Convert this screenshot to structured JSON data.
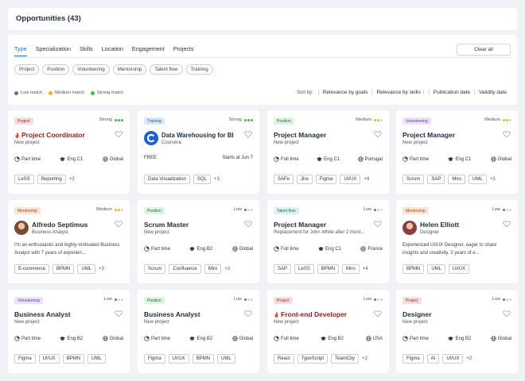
{
  "header": {
    "title": "Opportunities (43)"
  },
  "filters": {
    "tabs": [
      "Type",
      "Specialization",
      "Skills",
      "Location",
      "Engagement",
      "Projects"
    ],
    "active_tab": "Type",
    "clear_label": "Clear all",
    "chips": [
      "Project",
      "Position",
      "Volunteering",
      "Mentorship",
      "Talent flow",
      "Training"
    ],
    "legend": [
      {
        "label": "Low match",
        "color": "#6b7280"
      },
      {
        "label": "Medium match",
        "color": "#f0b429"
      },
      {
        "label": "Strong match",
        "color": "#3fb950"
      }
    ],
    "sort_label": "Sort by:",
    "sort_options": [
      "Relevance by goals",
      "Relevance by skills ↑",
      "Publication date",
      "Validity date"
    ]
  },
  "colors": {
    "project_tag_bg": "#f6dede",
    "project_tag_fg": "#9b2c2c",
    "training_tag_bg": "#dde9fb",
    "training_tag_fg": "#1e4e9c",
    "position_tag_bg": "#dff3e3",
    "position_tag_fg": "#226b35",
    "volunteering_tag_bg": "#ece3f8",
    "volunteering_tag_fg": "#5b3a99",
    "mentorship_tag_bg": "#fbe5d6",
    "mentorship_tag_fg": "#9c4a1a",
    "talent_tag_bg": "#dcf2f0",
    "talent_tag_fg": "#1e6b65"
  },
  "cards": [
    {
      "tag": "Project",
      "match": "Strong",
      "title": "Project Coordinator",
      "sub": "New project",
      "meta": [
        "Part time",
        "Eng C1",
        "Global"
      ],
      "skills": [
        "LeSS",
        "Reporting"
      ],
      "more": "+3",
      "red": true
    },
    {
      "tag": "Training",
      "match": "Strong",
      "title": "Data Warehousing for BI",
      "sub": "Coursera",
      "price": "FREE",
      "starts": "Starts at Jun 7",
      "skills": [
        "Data Visualization",
        "SQL"
      ],
      "more": "+3"
    },
    {
      "tag": "Position",
      "match": "Medium",
      "title": "Project Manager",
      "sub": "New project",
      "meta": [
        "Full time",
        "Eng C1",
        "Portugal"
      ],
      "skills": [
        "SAFe",
        "Jira",
        "Figma",
        "UI/UX"
      ],
      "more": "+4"
    },
    {
      "tag": "Volunteering",
      "match": "Medium",
      "title": "Project Manager",
      "sub": "New project",
      "meta": [
        "Part time",
        "Eng C1",
        "Global"
      ],
      "skills": [
        "Scrum",
        "SAP",
        "Miro",
        "UML"
      ],
      "more": "+3"
    },
    {
      "tag": "Mentorship",
      "match": "Medium",
      "title": "Alfredo Septimus",
      "sub": "Business Analyst",
      "desc": "I'm an enthusiastic and highly-motivated Business Analyst with 7 years of experien...",
      "skills": [
        "E-commerce",
        "BPMN",
        "UML"
      ],
      "more": "+3",
      "avatar": true
    },
    {
      "tag": "Position",
      "match": "Low",
      "title": "Scrum Master",
      "sub": "New project",
      "meta": [
        "Part time",
        "Eng B2",
        "Global"
      ],
      "skills": [
        "Scrum",
        "Confluence",
        "Miro"
      ],
      "more": "+2"
    },
    {
      "tag": "Talent flow",
      "match": "Low",
      "title": "Project Manager",
      "sub": "Replacement for John White after 2 mont...",
      "meta": [
        "Full time",
        "Eng C1",
        "France"
      ],
      "skills": [
        "SAP",
        "LeSS",
        "BPMN",
        "Miro"
      ],
      "more": "+4"
    },
    {
      "tag": "Mentorship",
      "match": "Low",
      "title": "Helen Elliott",
      "sub": "Designer",
      "desc": "Experienced UI/UX Designer, eager to share insights and creativity. 3 years of e...",
      "skills": [
        "BPMN",
        "UML",
        "UI/UX"
      ],
      "more": "",
      "avatar": true
    },
    {
      "tag": "Volunteering",
      "match": "Low",
      "title": "Business Analyst",
      "sub": "New project",
      "meta": [
        "Part time",
        "Eng B2",
        "Global"
      ],
      "skills": [
        "Figma",
        "UI/UX",
        "BPMN",
        "UML"
      ],
      "more": ""
    },
    {
      "tag": "Position",
      "match": "Low",
      "title": "Business Analyst",
      "sub": "New project",
      "meta": [
        "Part time",
        "Eng B2",
        "Global"
      ],
      "skills": [
        "Figma",
        "UI/UX",
        "BPMN",
        "UML"
      ],
      "more": ""
    },
    {
      "tag": "Project",
      "match": "Low",
      "title": "Front-end Developer",
      "sub": "New project",
      "meta": [
        "Full time",
        "Eng B2",
        "USA"
      ],
      "skills": [
        "React",
        "TypeScript",
        "TeamCity"
      ],
      "more": "+2",
      "red": true
    },
    {
      "tag": "Project",
      "match": "Low",
      "title": "Designer",
      "sub": "New project",
      "meta": [
        "Part time",
        "Eng B2",
        "Global"
      ],
      "skills": [
        "Figma",
        "AI",
        "UI/UX"
      ],
      "more": "+2"
    }
  ]
}
